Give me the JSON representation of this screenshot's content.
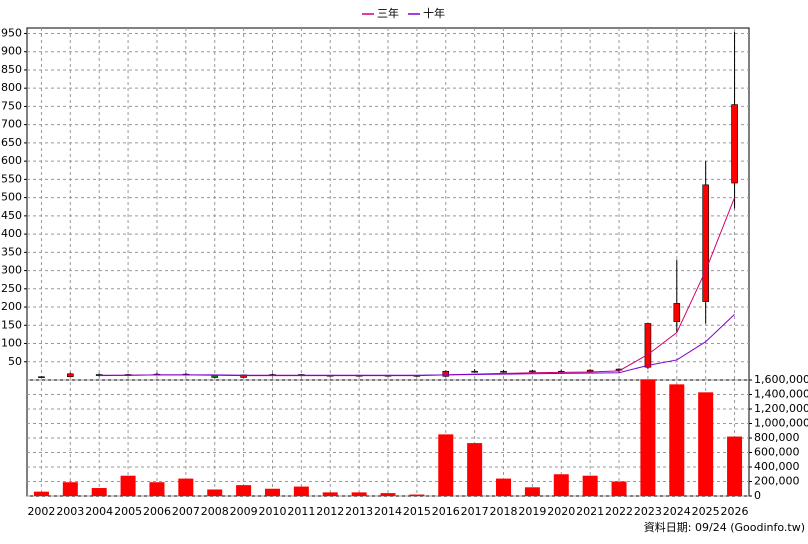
{
  "chart_data": {
    "type": "candlestick",
    "categories": [
      "2002",
      "2003",
      "2004",
      "2005",
      "2006",
      "2007",
      "2008",
      "2009",
      "2010",
      "2011",
      "2012",
      "2013",
      "2014",
      "2015",
      "2016",
      "2017",
      "2018",
      "2019",
      "2020",
      "2021",
      "2022",
      "2023",
      "2024",
      "2025",
      "2026"
    ],
    "open": [
      9,
      9,
      15,
      13,
      15,
      16,
      14,
      7,
      14,
      15,
      12,
      13,
      12,
      13,
      10,
      23,
      24,
      22,
      24,
      23,
      27,
      35,
      160,
      215,
      540
    ],
    "high": [
      10,
      20,
      18,
      17,
      20,
      19,
      15,
      15,
      18,
      16,
      14,
      14,
      14,
      14,
      26,
      30,
      28,
      28,
      29,
      30,
      32,
      155,
      330,
      600,
      955
    ],
    "low": [
      6,
      8,
      10,
      12,
      13,
      12,
      5,
      6,
      12,
      11,
      11,
      11,
      11,
      9,
      9,
      21,
      20,
      20,
      17,
      21,
      20,
      30,
      130,
      155,
      470
    ],
    "close": [
      7,
      17,
      12,
      15,
      16,
      14,
      7,
      14,
      15,
      12,
      13,
      12,
      13,
      10,
      24,
      24,
      22,
      25,
      23,
      27,
      30,
      155,
      210,
      535,
      755
    ],
    "up_color": "#ff0000",
    "down_color": "#008000",
    "series": [
      {
        "name": "三年",
        "color": "#d0006f",
        "values": [
          null,
          null,
          12,
          13,
          14,
          14,
          13,
          12,
          12,
          12,
          12,
          12,
          12,
          12,
          14,
          16,
          18,
          20,
          21,
          22,
          25,
          70,
          130,
          300,
          500
        ]
      },
      {
        "name": "十年",
        "color": "#8000d0",
        "values": [
          null,
          null,
          13,
          13,
          14,
          14,
          14,
          13,
          13,
          13,
          13,
          13,
          13,
          13,
          14,
          15,
          16,
          17,
          18,
          19,
          20,
          40,
          55,
          105,
          180
        ]
      }
    ],
    "volume": [
      60000,
      190000,
      110000,
      280000,
      190000,
      240000,
      90000,
      150000,
      100000,
      130000,
      50000,
      50000,
      40000,
      20000,
      850000,
      730000,
      240000,
      120000,
      300000,
      280000,
      200000,
      1610000,
      1540000,
      1430000,
      820000
    ],
    "volume_color": "#ff0000",
    "ylim": [
      0,
      965
    ],
    "yticks": [
      50,
      100,
      150,
      200,
      250,
      300,
      350,
      400,
      450,
      500,
      550,
      600,
      650,
      700,
      750,
      800,
      850,
      900,
      950
    ],
    "y2lim": [
      0,
      1600000
    ],
    "y2ticks": [
      0,
      {
        "value": 200000,
        "label": "200,000"
      },
      {
        "value": 400000,
        "label": "400,000"
      },
      {
        "value": 600000,
        "label": "600,000"
      },
      {
        "value": 800000,
        "label": "800,000"
      },
      {
        "value": 1000000,
        "label": "1,000,000"
      },
      {
        "value": 1200000,
        "label": "1,200,000"
      },
      {
        "value": 1400000,
        "label": "1,400,000"
      },
      {
        "value": 1600000,
        "label": "1,600,000"
      }
    ],
    "grid": true,
    "legend": "top",
    "note": "資料日期: 09/24  (Goodinfo.tw)"
  }
}
